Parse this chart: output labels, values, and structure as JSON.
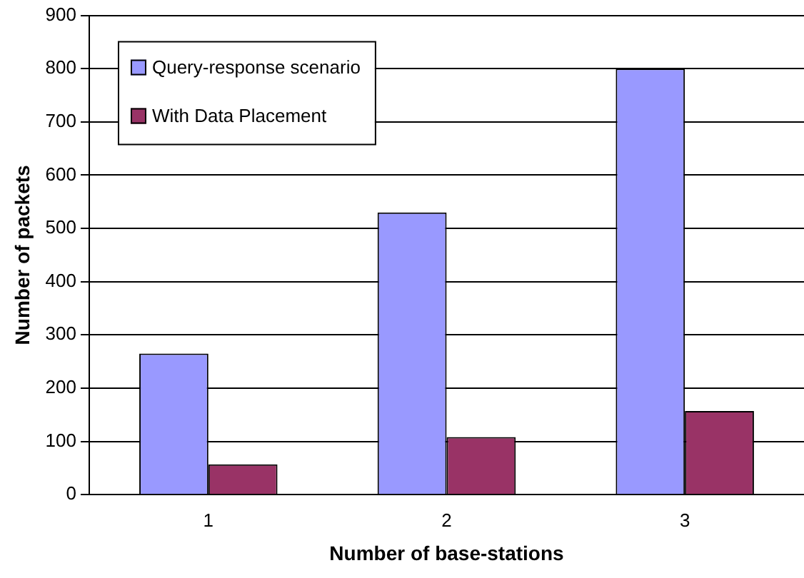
{
  "chart_data": {
    "type": "bar",
    "xlabel": "Number of base-stations",
    "ylabel": "Number of packets",
    "categories": [
      "1",
      "2",
      "3"
    ],
    "series": [
      {
        "name": "Query-response scenario",
        "color": "#9999ff",
        "values": [
          265,
          530,
          800
        ]
      },
      {
        "name": "With Data Placement",
        "color": "#993366",
        "values": [
          57,
          108,
          157
        ]
      }
    ],
    "ylim": [
      0,
      900
    ],
    "yticks": [
      0,
      100,
      200,
      300,
      400,
      500,
      600,
      700,
      800,
      900
    ],
    "grid": "y",
    "legend": "top left"
  }
}
